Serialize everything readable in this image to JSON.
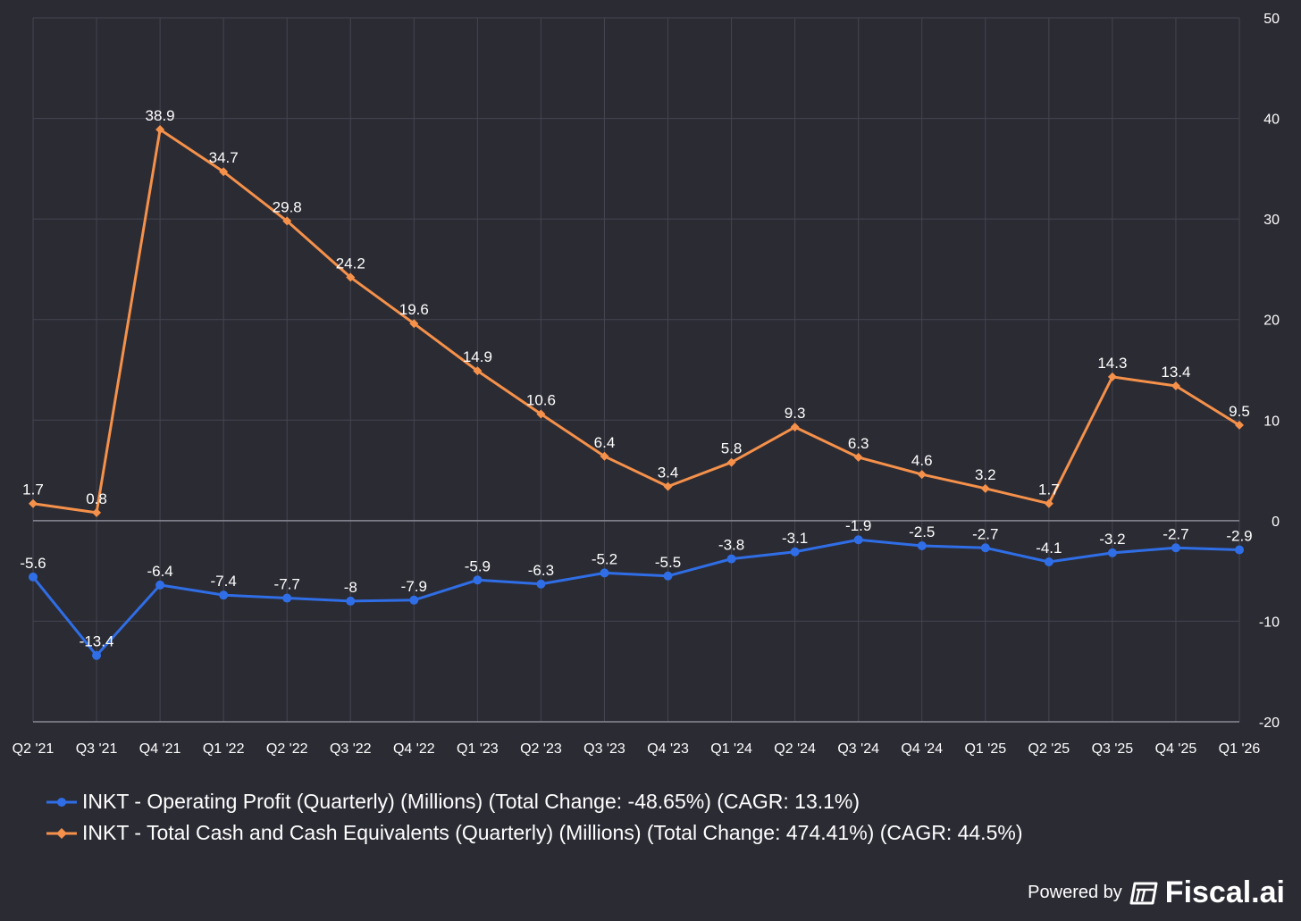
{
  "chart_data": {
    "type": "line",
    "categories": [
      "Q2 '21",
      "Q3 '21",
      "Q4 '21",
      "Q1 '22",
      "Q2 '22",
      "Q3 '22",
      "Q4 '22",
      "Q1 '23",
      "Q2 '23",
      "Q3 '23",
      "Q4 '23",
      "Q1 '24",
      "Q2 '24",
      "Q3 '24",
      "Q4 '24",
      "Q1 '25",
      "Q2 '25",
      "Q3 '25",
      "Q4 '25",
      "Q1 '26"
    ],
    "series": [
      {
        "name": "INKT - Operating Profit (Quarterly) (Millions) (Total Change: -48.65%) (CAGR: 13.1%)",
        "color": "#2f6ee6",
        "marker": "circle",
        "values": [
          -5.6,
          -13.4,
          -6.4,
          -7.4,
          -7.7,
          -8,
          -7.9,
          -5.9,
          -6.3,
          -5.2,
          -5.5,
          -3.8,
          -3.1,
          -1.9,
          -2.5,
          -2.7,
          -4.1,
          -3.2,
          -2.7,
          -2.9
        ]
      },
      {
        "name": "INKT - Total Cash and Cash Equivalents (Quarterly) (Millions) (Total Change: 474.41%) (CAGR: 44.5%)",
        "color": "#f5914a",
        "marker": "diamond",
        "values": [
          1.7,
          0.8,
          38.9,
          34.7,
          29.8,
          24.2,
          19.6,
          14.9,
          10.6,
          6.4,
          3.4,
          5.8,
          9.3,
          6.3,
          4.6,
          3.2,
          1.7,
          14.3,
          13.4,
          9.5
        ]
      }
    ],
    "ylim": [
      -20,
      50
    ],
    "yticks": [
      -20,
      -10,
      0,
      10,
      20,
      30,
      40,
      50
    ],
    "y_axis_side": "right",
    "grid": true,
    "legend_position": "bottom-left"
  },
  "footer": {
    "powered_by": "Powered by",
    "brand": "Fiscal.ai",
    "brand_icon": "fiscal-logo-icon"
  }
}
